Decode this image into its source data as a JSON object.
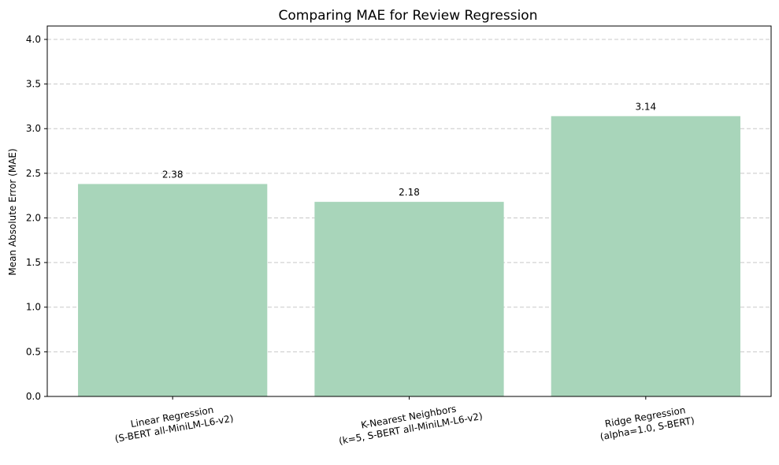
{
  "chart_data": {
    "type": "bar",
    "title": "Comparing MAE for Review Regression",
    "xlabel": "",
    "ylabel": "Mean Absolute Error (MAE)",
    "categories": [
      [
        "Linear Regression",
        "(S-BERT all-MiniLM-L6-v2)"
      ],
      [
        "K-Nearest Neighbors",
        "(k=5, S-BERT all-MiniLM-L6-v2)"
      ],
      [
        "Ridge Regression",
        "(alpha=1.0, S-BERT)"
      ]
    ],
    "values": [
      2.38,
      2.18,
      3.14
    ],
    "data_labels": [
      "2.38",
      "2.18",
      "3.14"
    ],
    "ylim": [
      0,
      4.15
    ],
    "yticks": [
      0.0,
      0.5,
      1.0,
      1.5,
      2.0,
      2.5,
      3.0,
      3.5,
      4.0
    ],
    "ytick_labels": [
      "0.0",
      "0.5",
      "1.0",
      "1.5",
      "2.0",
      "2.5",
      "3.0",
      "3.5",
      "4.0"
    ],
    "grid": "y-dashed",
    "bar_color": "#a8d5ba"
  }
}
